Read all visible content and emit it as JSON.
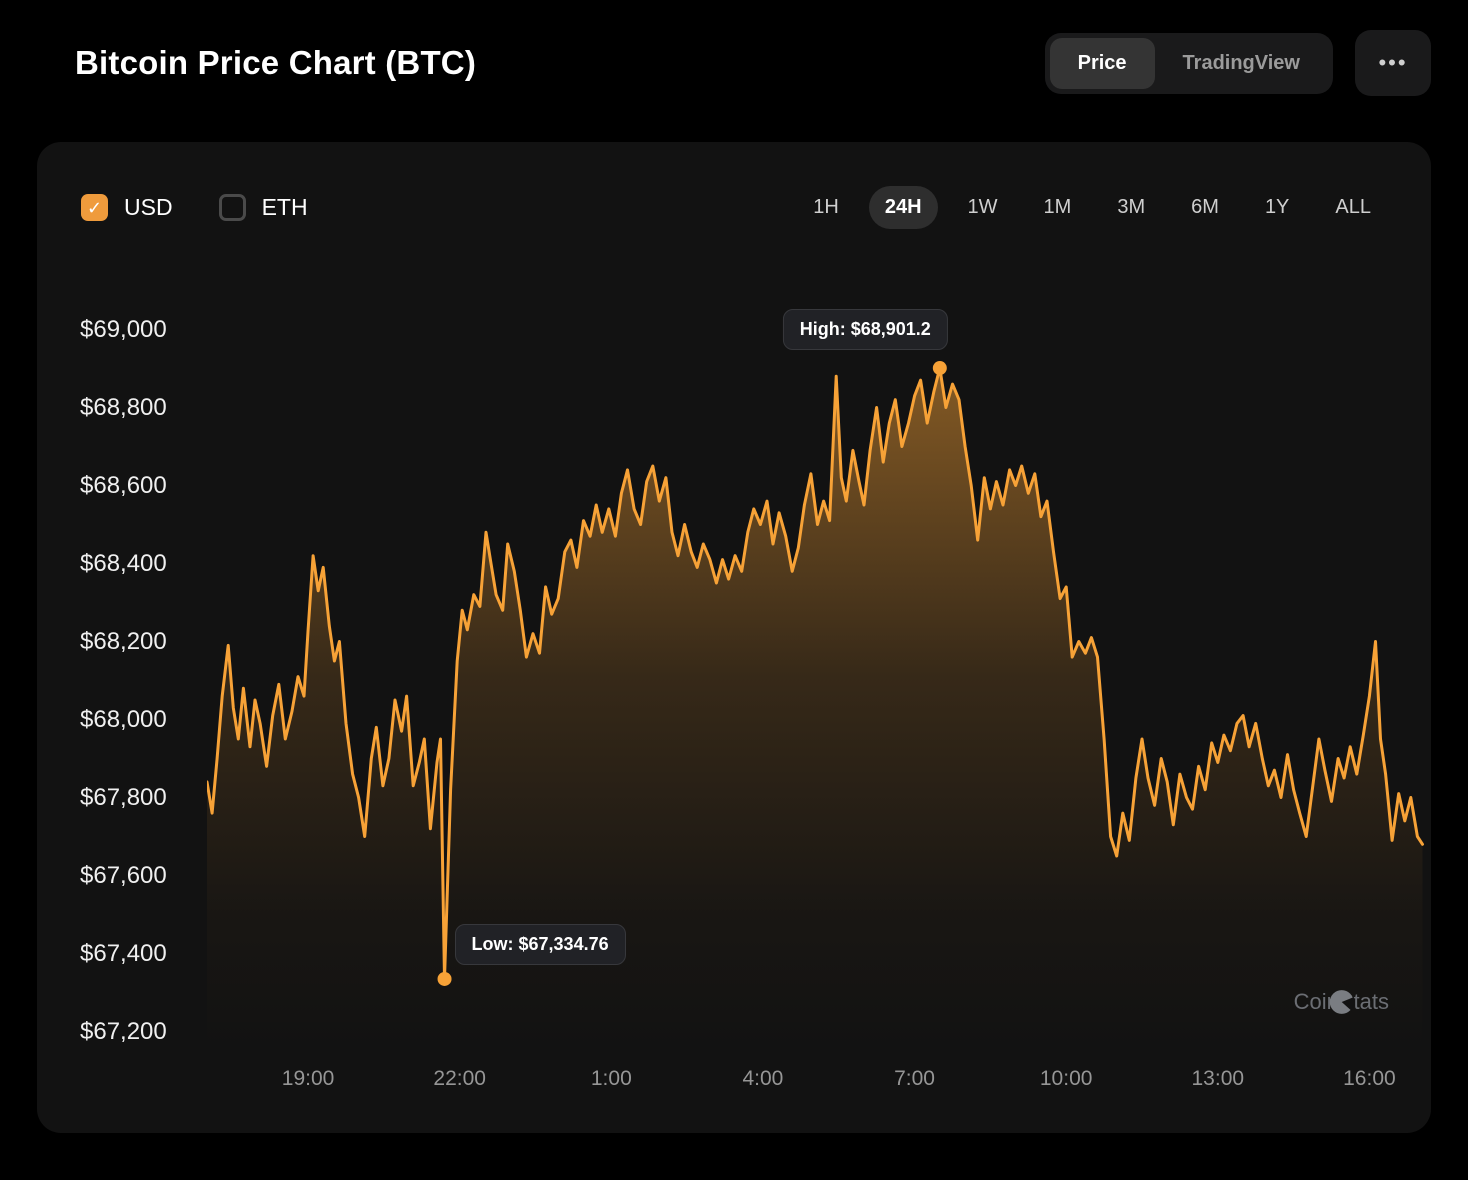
{
  "header": {
    "title": "Bitcoin Price Chart (BTC)",
    "view_tabs": [
      {
        "label": "Price",
        "active": true
      },
      {
        "label": "TradingView",
        "active": false
      }
    ],
    "more_button": "•••"
  },
  "controls": {
    "currencies": [
      {
        "label": "USD",
        "checked": true
      },
      {
        "label": "ETH",
        "checked": false
      }
    ],
    "ranges": [
      "1H",
      "24H",
      "1W",
      "1M",
      "3M",
      "6M",
      "1Y",
      "ALL"
    ],
    "active_range": "24H"
  },
  "icons": {
    "check": "✓",
    "ellipsis": "•••"
  },
  "colors": {
    "accent": "#F7A237",
    "checkbox": "#EF9B3C",
    "card_background": "#121212",
    "page_background": "#000000",
    "tooltip_background": "#212226",
    "axis_label": "#969696"
  },
  "watermark": {
    "label": "CoinStats"
  },
  "chart_data": {
    "type": "area",
    "title": "Bitcoin Price Chart (BTC)",
    "currency": "USD",
    "range": "24H",
    "line_color": "#F7A237",
    "xlim": [
      0,
      24.1
    ],
    "ylim": [
      67150,
      69150
    ],
    "grid": false,
    "y_ticks": [
      {
        "label": "$69,000",
        "value": 69000
      },
      {
        "label": "$68,800",
        "value": 68800
      },
      {
        "label": "$68,600",
        "value": 68600
      },
      {
        "label": "$68,400",
        "value": 68400
      },
      {
        "label": "$68,200",
        "value": 68200
      },
      {
        "label": "$68,000",
        "value": 68000
      },
      {
        "label": "$67,800",
        "value": 67800
      },
      {
        "label": "$67,600",
        "value": 67600
      },
      {
        "label": "$67,400",
        "value": 67400
      },
      {
        "label": "$67,200",
        "value": 67200
      }
    ],
    "x_ticks": [
      {
        "label": "19:00",
        "t": 2
      },
      {
        "label": "22:00",
        "t": 5
      },
      {
        "label": "1:00",
        "t": 8
      },
      {
        "label": "4:00",
        "t": 11
      },
      {
        "label": "7:00",
        "t": 14
      },
      {
        "label": "10:00",
        "t": 17
      },
      {
        "label": "13:00",
        "t": 20
      },
      {
        "label": "16:00",
        "t": 23
      }
    ],
    "high": {
      "label": "High: $68,901.2",
      "value": 68901.2,
      "t": 14.5
    },
    "low": {
      "label": "Low: $67,334.76",
      "value": 67334.76,
      "t": 4.7
    },
    "series": [
      {
        "name": "BTC price (USD)",
        "x": [
          0,
          0.1,
          0.2,
          0.3,
          0.42,
          0.52,
          0.62,
          0.72,
          0.85,
          0.95,
          1.05,
          1.18,
          1.3,
          1.42,
          1.55,
          1.68,
          1.8,
          1.92,
          2.0,
          2.1,
          2.2,
          2.3,
          2.42,
          2.52,
          2.62,
          2.75,
          2.88,
          3.0,
          3.12,
          3.25,
          3.35,
          3.48,
          3.6,
          3.72,
          3.85,
          3.95,
          4.08,
          4.2,
          4.3,
          4.42,
          4.55,
          4.62,
          4.7,
          4.82,
          4.95,
          5.05,
          5.15,
          5.28,
          5.4,
          5.52,
          5.62,
          5.72,
          5.85,
          5.95,
          6.08,
          6.2,
          6.32,
          6.45,
          6.58,
          6.7,
          6.82,
          6.95,
          7.08,
          7.2,
          7.32,
          7.45,
          7.58,
          7.7,
          7.82,
          7.95,
          8.08,
          8.2,
          8.32,
          8.45,
          8.58,
          8.7,
          8.82,
          8.95,
          9.08,
          9.2,
          9.32,
          9.45,
          9.58,
          9.7,
          9.82,
          9.95,
          10.08,
          10.2,
          10.32,
          10.45,
          10.58,
          10.7,
          10.82,
          10.95,
          11.08,
          11.2,
          11.32,
          11.45,
          11.58,
          11.7,
          11.82,
          11.95,
          12.08,
          12.2,
          12.32,
          12.45,
          12.55,
          12.65,
          12.78,
          12.9,
          13.0,
          13.12,
          13.25,
          13.38,
          13.5,
          13.62,
          13.75,
          13.88,
          14.0,
          14.12,
          14.25,
          14.38,
          14.5,
          14.62,
          14.75,
          14.88,
          15.0,
          15.12,
          15.25,
          15.38,
          15.5,
          15.62,
          15.75,
          15.88,
          16.0,
          16.12,
          16.25,
          16.38,
          16.5,
          16.62,
          16.75,
          16.88,
          17.0,
          17.12,
          17.25,
          17.38,
          17.5,
          17.62,
          17.75,
          17.88,
          18.0,
          18.12,
          18.25,
          18.38,
          18.5,
          18.62,
          18.75,
          18.88,
          19.0,
          19.12,
          19.25,
          19.38,
          19.5,
          19.62,
          19.75,
          19.88,
          20.0,
          20.12,
          20.25,
          20.38,
          20.5,
          20.62,
          20.75,
          20.88,
          21.0,
          21.12,
          21.25,
          21.38,
          21.5,
          21.62,
          21.75,
          21.88,
          22.0,
          22.12,
          22.25,
          22.38,
          22.5,
          22.62,
          22.75,
          22.88,
          23.0,
          23.12,
          23.22,
          23.32,
          23.45,
          23.58,
          23.7,
          23.82,
          23.95,
          24.05
        ],
        "y": [
          67840,
          67760,
          67900,
          68060,
          68190,
          68030,
          67950,
          68080,
          67930,
          68050,
          67990,
          67880,
          68010,
          68090,
          67950,
          68020,
          68110,
          68060,
          68230,
          68420,
          68330,
          68390,
          68240,
          68150,
          68200,
          67990,
          67860,
          67800,
          67700,
          67900,
          67980,
          67830,
          67900,
          68050,
          67970,
          68060,
          67830,
          67890,
          67950,
          67720,
          67890,
          67950,
          67334.76,
          67820,
          68150,
          68280,
          68230,
          68320,
          68290,
          68480,
          68400,
          68320,
          68280,
          68450,
          68380,
          68280,
          68160,
          68220,
          68170,
          68340,
          68270,
          68310,
          68430,
          68460,
          68390,
          68510,
          68470,
          68550,
          68480,
          68540,
          68470,
          68580,
          68640,
          68540,
          68500,
          68610,
          68650,
          68560,
          68620,
          68480,
          68420,
          68500,
          68430,
          68390,
          68450,
          68410,
          68350,
          68410,
          68360,
          68420,
          68380,
          68480,
          68540,
          68500,
          68560,
          68450,
          68530,
          68470,
          68380,
          68440,
          68550,
          68630,
          68500,
          68560,
          68510,
          68880,
          68620,
          68560,
          68690,
          68610,
          68550,
          68690,
          68800,
          68660,
          68760,
          68820,
          68700,
          68760,
          68830,
          68870,
          68760,
          68840,
          68901.2,
          68800,
          68860,
          68820,
          68700,
          68600,
          68460,
          68620,
          68540,
          68610,
          68550,
          68640,
          68600,
          68650,
          68580,
          68630,
          68520,
          68560,
          68430,
          68310,
          68340,
          68160,
          68200,
          68170,
          68210,
          68160,
          67950,
          67700,
          67650,
          67760,
          67690,
          67850,
          67950,
          67850,
          67780,
          67900,
          67840,
          67730,
          67860,
          67800,
          67770,
          67880,
          67820,
          67940,
          67890,
          67960,
          67920,
          67990,
          68010,
          67930,
          67990,
          67900,
          67830,
          67870,
          67800,
          67910,
          67820,
          67760,
          67700,
          67830,
          67950,
          67870,
          67790,
          67900,
          67850,
          67930,
          67860,
          67960,
          68060,
          68200,
          67950,
          67860,
          67690,
          67810,
          67740,
          67800,
          67700,
          67680
        ]
      }
    ]
  }
}
